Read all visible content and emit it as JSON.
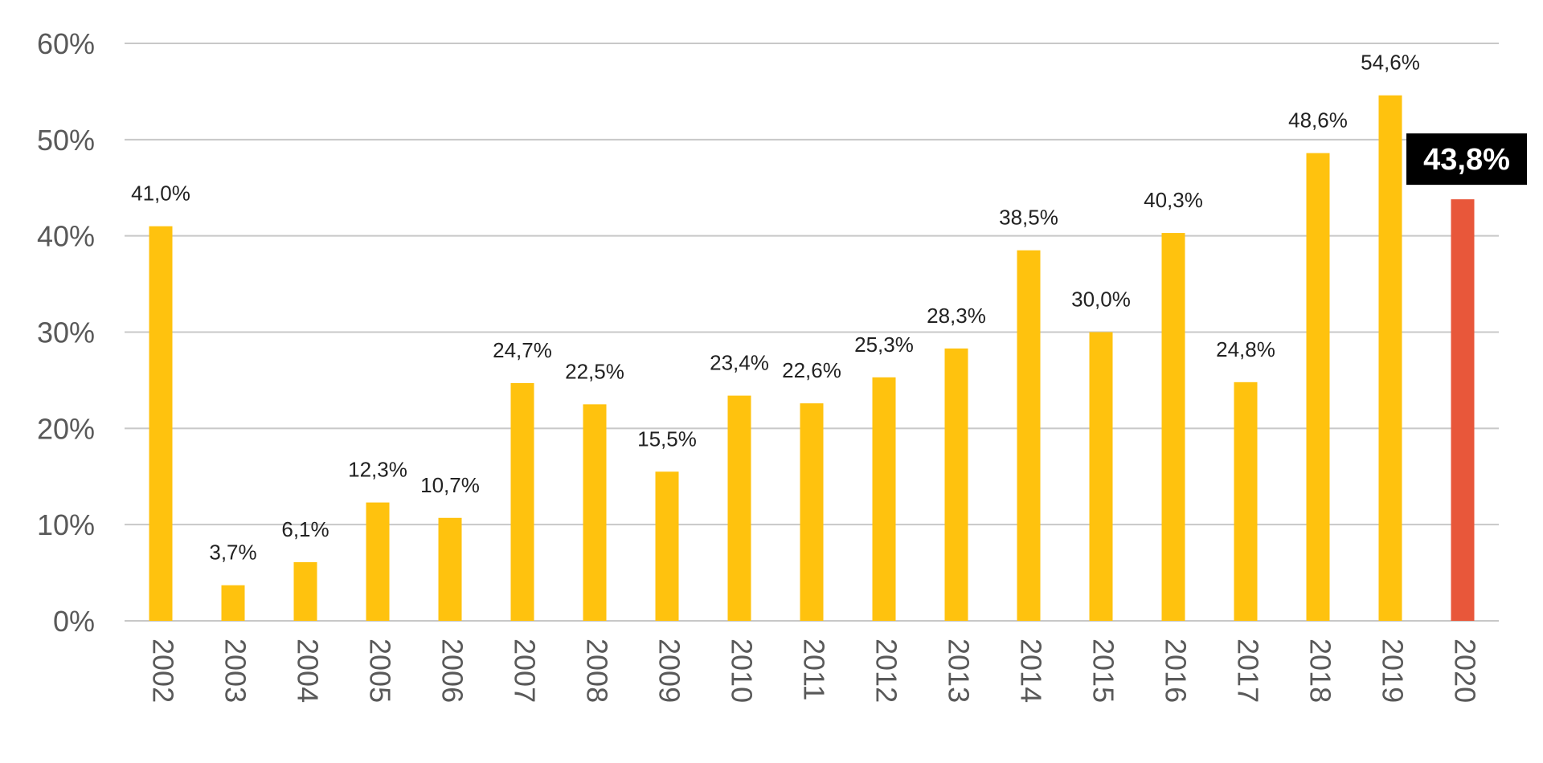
{
  "chart_data": {
    "type": "bar",
    "title": "",
    "xlabel": "",
    "ylabel": "",
    "ylim": [
      0,
      60
    ],
    "y_ticks": [
      "0%",
      "10%",
      "20%",
      "30%",
      "40%",
      "50%",
      "60%"
    ],
    "y_tick_values": [
      0,
      10,
      20,
      30,
      40,
      50,
      60
    ],
    "grid": true,
    "legend": "none",
    "categories": [
      "2002",
      "2003",
      "2004",
      "2005",
      "2006",
      "2007",
      "2008",
      "2009",
      "2010",
      "2011",
      "2012",
      "2013",
      "2014",
      "2015",
      "2016",
      "2017",
      "2018",
      "2019",
      "2020"
    ],
    "values": [
      41.0,
      3.7,
      6.1,
      12.3,
      10.7,
      24.7,
      22.5,
      15.5,
      23.4,
      22.6,
      25.3,
      28.3,
      38.5,
      30.0,
      40.3,
      24.8,
      48.6,
      54.6,
      43.8
    ],
    "data_labels": [
      "41,0%",
      "3,7%",
      "6,1%",
      "12,3%",
      "10,7%",
      "24,7%",
      "22,5%",
      "15,5%",
      "23,4%",
      "22,6%",
      "25,3%",
      "28,3%",
      "38,5%",
      "30,0%",
      "40,3%",
      "24,8%",
      "48,6%",
      "54,6%",
      "43,8%"
    ],
    "highlight_index": 18,
    "colors": {
      "bar": "#FFC20E",
      "highlight_bar": "#E8573A",
      "highlight_label_bg": "#000000",
      "highlight_label_text": "#FFFFFF",
      "grid": "#C8C8C8",
      "axis_text": "#595959"
    }
  }
}
